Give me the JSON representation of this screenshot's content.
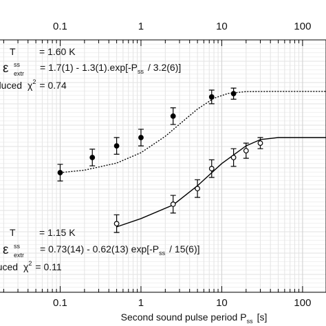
{
  "chart_data": {
    "type": "scatter",
    "x_label": {
      "text": "Second sound pulse period P",
      "sub": "ss",
      "unit": "[s]"
    },
    "xlim": [
      0.018,
      195
    ],
    "ylim": [
      0,
      1
    ],
    "log_x": true,
    "grid": true,
    "xticks": [
      0.1,
      1,
      10,
      100
    ],
    "xminor": [
      0.02,
      0.03,
      0.04,
      0.05,
      0.06,
      0.07,
      0.08,
      0.09,
      0.2,
      0.3,
      0.4,
      0.5,
      0.6,
      0.7,
      0.8,
      0.9,
      2,
      3,
      4,
      5,
      6,
      7,
      8,
      9,
      20,
      30,
      40,
      50,
      60,
      70,
      80,
      90
    ],
    "series": [
      {
        "marker": "filled",
        "color": "#000000",
        "x": [
          0.1,
          0.25,
          0.5,
          1,
          2.5,
          7.5,
          14
        ],
        "values": [
          0.474,
          0.534,
          0.58,
          0.613,
          0.698,
          0.774,
          0.787
        ],
        "errors": [
          0.033,
          0.033,
          0.033,
          0.033,
          0.033,
          0.027,
          0.022
        ]
      },
      {
        "marker": "open",
        "color": "#000000",
        "x": [
          0.5,
          2.5,
          5,
          7.5,
          14,
          20,
          30
        ],
        "values": [
          0.272,
          0.349,
          0.411,
          0.49,
          0.534,
          0.561,
          0.591
        ],
        "errors": [
          0.035,
          0.035,
          0.035,
          0.035,
          0.035,
          0.03,
          0.022
        ]
      }
    ],
    "fits": [
      {
        "dash": "dotted",
        "color": "#000000",
        "x": [
          0.1,
          0.2,
          0.5,
          1,
          2,
          3,
          5,
          8,
          12,
          20,
          50,
          150,
          195
        ],
        "values": [
          0.474,
          0.484,
          0.512,
          0.553,
          0.618,
          0.666,
          0.726,
          0.769,
          0.788,
          0.795,
          0.796,
          0.796,
          0.796
        ]
      },
      {
        "dash": "solid",
        "color": "#000000",
        "x": [
          0.5,
          1,
          2.5,
          5,
          10,
          20,
          30,
          50,
          150,
          195
        ],
        "values": [
          0.259,
          0.292,
          0.346,
          0.422,
          0.51,
          0.58,
          0.605,
          0.613,
          0.613,
          0.613
        ]
      }
    ],
    "annotations": [
      {
        "T": "T",
        "value": "= 1.60 K",
        "symbol": "ε",
        "sup": "ss",
        "sub": "extr",
        "formula": "= 1.7(1) - 1.3(1).exp[-P",
        "formula_sub": "ss",
        "formula_end": "/ 3.2(6)]",
        "reduced": "Reduced",
        "chi": "χ",
        "chi_sup": "2",
        "chi_value": "= 0.74"
      },
      {
        "T": "T",
        "value": "= 1.15 K",
        "symbol": "ε",
        "sup": "ss",
        "sub": "extr",
        "formula": "= 0.73(14) - 0.62(13) exp[-P",
        "formula_sub": "ss",
        "formula_end": "/ 15(6)]",
        "reduced": "Reduced",
        "chi": "χ",
        "chi_sup": "2",
        "chi_value": "= 0.11"
      }
    ]
  }
}
